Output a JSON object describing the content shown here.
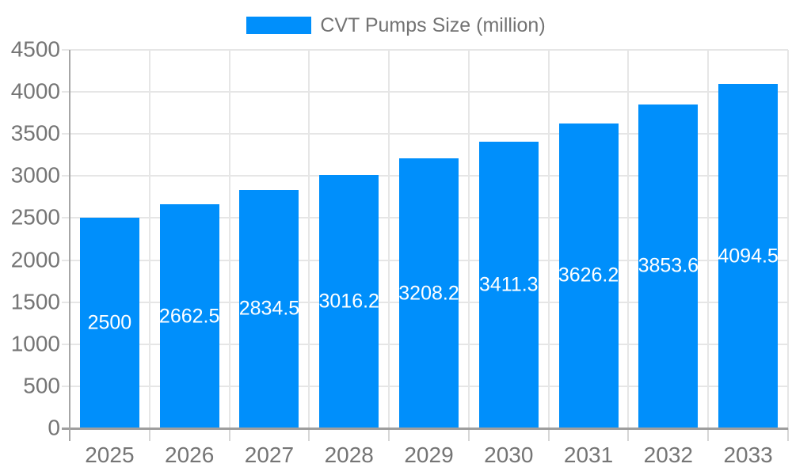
{
  "legend": {
    "label": "CVT Pumps Size (million)"
  },
  "chart_data": {
    "type": "bar",
    "title": "CVT Pumps Size (million)",
    "categories": [
      "2025",
      "2026",
      "2027",
      "2028",
      "2029",
      "2030",
      "2031",
      "2032",
      "2033"
    ],
    "series": [
      {
        "name": "CVT Pumps Size (million)",
        "values": [
          2500,
          2662.5,
          2834.5,
          3016.2,
          3208.2,
          3411.3,
          3626.2,
          3853.6,
          4094.5
        ],
        "value_labels": [
          "2500",
          "2662.5",
          "2834.5",
          "3016.2",
          "3208.2",
          "3411.3",
          "3626.2",
          "3853.6",
          "4094.5"
        ]
      }
    ],
    "xlabel": "",
    "ylabel": "",
    "ylim": [
      0,
      4500
    ],
    "ytick_step": 500,
    "ytick_labels": [
      "0",
      "500",
      "1000",
      "1500",
      "2000",
      "2500",
      "3000",
      "3500",
      "4000",
      "4500"
    ],
    "grid": true,
    "legend_position": "top",
    "colors": {
      "bar": "#008FFB",
      "value_label": "#ffffff",
      "axis_text": "#757575",
      "gridline": "#e6e6e6",
      "axis_line": "#9e9e9e"
    }
  }
}
